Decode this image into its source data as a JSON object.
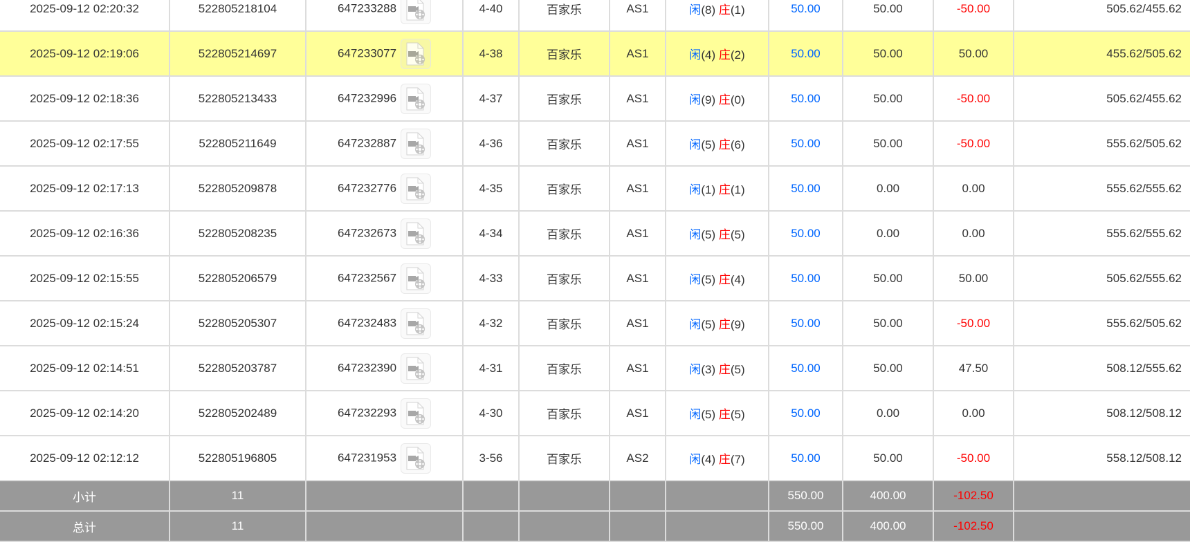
{
  "rows": [
    {
      "time": "2025-09-12 02:20:32",
      "bet_id": "522805218104",
      "round_id": "647233288",
      "shoe": "4-40",
      "game": "百家乐",
      "table": "AS1",
      "xian": "闲",
      "xian_n": "(8)",
      "zhuang": "庄",
      "zhuang_n": "(1)",
      "bet": "50.00",
      "valid": "50.00",
      "win": "-50.00",
      "balance": "505.62/455.62",
      "highlight": false
    },
    {
      "time": "2025-09-12 02:19:06",
      "bet_id": "522805214697",
      "round_id": "647233077",
      "shoe": "4-38",
      "game": "百家乐",
      "table": "AS1",
      "xian": "闲",
      "xian_n": "(4)",
      "zhuang": "庄",
      "zhuang_n": "(2)",
      "bet": "50.00",
      "valid": "50.00",
      "win": "50.00",
      "balance": "455.62/505.62",
      "highlight": true
    },
    {
      "time": "2025-09-12 02:18:36",
      "bet_id": "522805213433",
      "round_id": "647232996",
      "shoe": "4-37",
      "game": "百家乐",
      "table": "AS1",
      "xian": "闲",
      "xian_n": "(9)",
      "zhuang": "庄",
      "zhuang_n": "(0)",
      "bet": "50.00",
      "valid": "50.00",
      "win": "-50.00",
      "balance": "505.62/455.62",
      "highlight": false
    },
    {
      "time": "2025-09-12 02:17:55",
      "bet_id": "522805211649",
      "round_id": "647232887",
      "shoe": "4-36",
      "game": "百家乐",
      "table": "AS1",
      "xian": "闲",
      "xian_n": "(5)",
      "zhuang": "庄",
      "zhuang_n": "(6)",
      "bet": "50.00",
      "valid": "50.00",
      "win": "-50.00",
      "balance": "555.62/505.62",
      "highlight": false
    },
    {
      "time": "2025-09-12 02:17:13",
      "bet_id": "522805209878",
      "round_id": "647232776",
      "shoe": "4-35",
      "game": "百家乐",
      "table": "AS1",
      "xian": "闲",
      "xian_n": "(1)",
      "zhuang": "庄",
      "zhuang_n": "(1)",
      "bet": "50.00",
      "valid": "0.00",
      "win": "0.00",
      "balance": "555.62/555.62",
      "highlight": false
    },
    {
      "time": "2025-09-12 02:16:36",
      "bet_id": "522805208235",
      "round_id": "647232673",
      "shoe": "4-34",
      "game": "百家乐",
      "table": "AS1",
      "xian": "闲",
      "xian_n": "(5)",
      "zhuang": "庄",
      "zhuang_n": "(5)",
      "bet": "50.00",
      "valid": "0.00",
      "win": "0.00",
      "balance": "555.62/555.62",
      "highlight": false
    },
    {
      "time": "2025-09-12 02:15:55",
      "bet_id": "522805206579",
      "round_id": "647232567",
      "shoe": "4-33",
      "game": "百家乐",
      "table": "AS1",
      "xian": "闲",
      "xian_n": "(5)",
      "zhuang": "庄",
      "zhuang_n": "(4)",
      "bet": "50.00",
      "valid": "50.00",
      "win": "50.00",
      "balance": "505.62/555.62",
      "highlight": false
    },
    {
      "time": "2025-09-12 02:15:24",
      "bet_id": "522805205307",
      "round_id": "647232483",
      "shoe": "4-32",
      "game": "百家乐",
      "table": "AS1",
      "xian": "闲",
      "xian_n": "(5)",
      "zhuang": "庄",
      "zhuang_n": "(9)",
      "bet": "50.00",
      "valid": "50.00",
      "win": "-50.00",
      "balance": "555.62/505.62",
      "highlight": false
    },
    {
      "time": "2025-09-12 02:14:51",
      "bet_id": "522805203787",
      "round_id": "647232390",
      "shoe": "4-31",
      "game": "百家乐",
      "table": "AS1",
      "xian": "闲",
      "xian_n": "(3)",
      "zhuang": "庄",
      "zhuang_n": "(5)",
      "bet": "50.00",
      "valid": "50.00",
      "win": "47.50",
      "balance": "508.12/555.62",
      "highlight": false
    },
    {
      "time": "2025-09-12 02:14:20",
      "bet_id": "522805202489",
      "round_id": "647232293",
      "shoe": "4-30",
      "game": "百家乐",
      "table": "AS1",
      "xian": "闲",
      "xian_n": "(5)",
      "zhuang": "庄",
      "zhuang_n": "(5)",
      "bet": "50.00",
      "valid": "0.00",
      "win": "0.00",
      "balance": "508.12/508.12",
      "highlight": false
    },
    {
      "time": "2025-09-12 02:12:12",
      "bet_id": "522805196805",
      "round_id": "647231953",
      "shoe": "3-56",
      "game": "百家乐",
      "table": "AS2",
      "xian": "闲",
      "xian_n": "(4)",
      "zhuang": "庄",
      "zhuang_n": "(7)",
      "bet": "50.00",
      "valid": "50.00",
      "win": "-50.00",
      "balance": "558.12/508.12",
      "highlight": false
    }
  ],
  "subtotal": {
    "label": "小计",
    "count": "11",
    "bet": "550.00",
    "valid": "400.00",
    "win": "-102.50"
  },
  "total": {
    "label": "总计",
    "count": "11",
    "bet": "550.00",
    "valid": "400.00",
    "win": "-102.50"
  },
  "colors": {
    "highlight": "#ffff99",
    "positive_bet": "#0066ff",
    "negative": "#ff0000",
    "footer_bg": "#999999"
  },
  "icons": {
    "replay": "video-file-icon"
  }
}
